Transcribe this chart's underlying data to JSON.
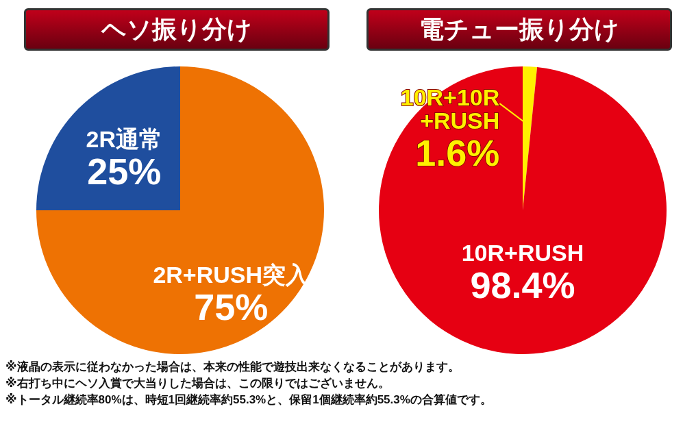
{
  "chart_data": [
    {
      "type": "pie",
      "title": "ヘソ振り分け",
      "categories": [
        "2R+RUSH突入",
        "2R通常"
      ],
      "values": [
        75,
        25
      ],
      "colors": [
        "#ee7203",
        "#1f4e9e"
      ],
      "value_labels": [
        "75%",
        "25%"
      ]
    },
    {
      "type": "pie",
      "title": "電チュー振り分け",
      "categories": [
        "10R+10R +RUSH",
        "10R+RUSH"
      ],
      "values": [
        1.6,
        98.4
      ],
      "colors": [
        "#fff000",
        "#e60012"
      ],
      "value_labels": [
        "1.6%",
        "98.4%"
      ],
      "annotations": [
        "※液晶の表示に従わなかった場合は、本来の性能で遊技出来なくなることがあります。",
        "※右打ち中にヘソ入賞で大当りした場合は、この限りではございません。",
        "※トータル継続率80%は、時短1回継続率約55.3%と、保留1個継続率約55.3%の合算値です。"
      ]
    }
  ]
}
